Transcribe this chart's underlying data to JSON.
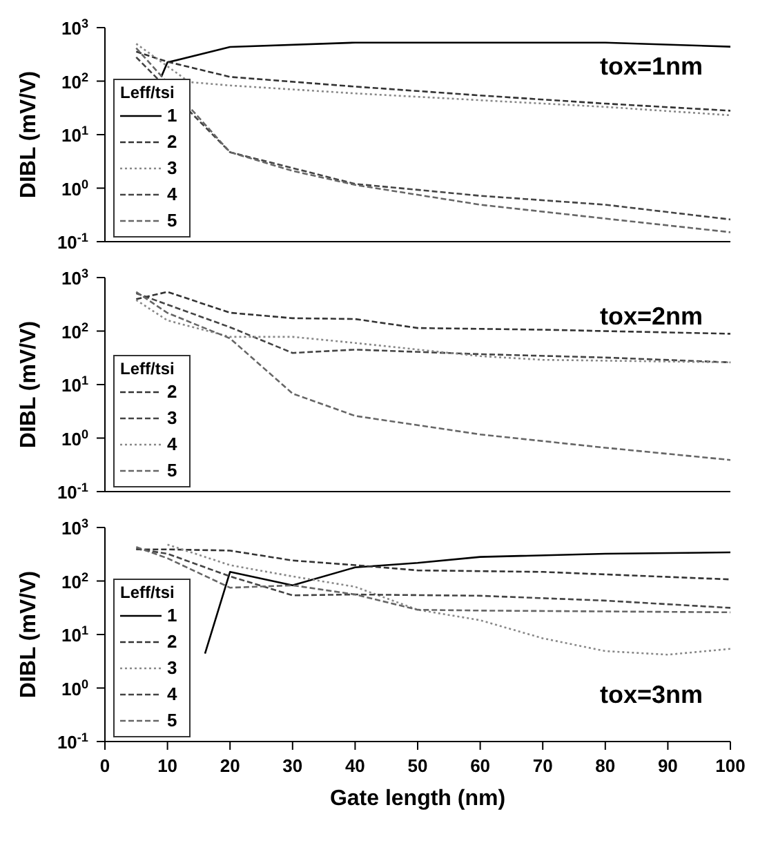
{
  "chart_data": [
    {
      "type": "line",
      "ylabel": "DIBL (mV/V)",
      "legend_title": "Leff/tsi",
      "legend": "bottom left",
      "log": "y",
      "grid": false,
      "marker": "none",
      "tick_labels": "y",
      "xlim": [
        0,
        100
      ],
      "xticks": [
        0,
        10,
        20,
        30,
        40,
        50,
        60,
        70,
        80,
        90,
        100
      ],
      "ylim": [
        0.1,
        1000
      ],
      "yticks": [
        {
          "value": 0.1,
          "label": "10$^{-1}$"
        },
        {
          "value": 1,
          "label": "10$^{0}$"
        },
        {
          "value": 10,
          "label": "10$^{1}$"
        },
        {
          "value": 100,
          "label": "10$^{2}$"
        },
        {
          "value": 1000,
          "label": "10$^{3}$"
        }
      ],
      "annotations": [
        "tox=1nm"
      ],
      "series": [
        {
          "name": "1",
          "color": "#000000",
          "line_style": "solid",
          "x": [
            9,
            10,
            20,
            40,
            60,
            80,
            100
          ],
          "values": [
            120,
            224,
            435,
            525,
            525,
            525,
            440
          ]
        },
        {
          "name": "2",
          "color": "#333333",
          "line_style": "dashed",
          "x": [
            5,
            10,
            20,
            40,
            60,
            80,
            100
          ],
          "values": [
            355,
            230,
            120,
            79,
            54,
            38,
            28
          ]
        },
        {
          "name": "3",
          "color": "#888888",
          "line_style": "dotted",
          "x": [
            5,
            13.5,
            20,
            40,
            60,
            80,
            100
          ],
          "values": [
            500,
            96,
            83,
            59,
            44,
            33,
            23
          ]
        },
        {
          "name": "4",
          "color": "#444444",
          "line_style": "dashed",
          "x": [
            5,
            20,
            40,
            60,
            80,
            100
          ],
          "values": [
            280,
            4.7,
            1.2,
            0.72,
            0.49,
            0.26
          ]
        },
        {
          "name": "5",
          "color": "#666666",
          "line_style": "dashed",
          "x": [
            5,
            20,
            30,
            40,
            60,
            80,
            100
          ],
          "values": [
            415,
            4.7,
            2.1,
            1.15,
            0.49,
            0.27,
            0.15
          ]
        }
      ]
    },
    {
      "type": "line",
      "ylabel": "DIBL (mV/V)",
      "legend_title": "Leff/tsi",
      "legend": "bottom left",
      "log": "y",
      "grid": false,
      "marker": "none",
      "tick_labels": "y",
      "xlim": [
        0,
        100
      ],
      "xticks": [
        0,
        10,
        20,
        30,
        40,
        50,
        60,
        70,
        80,
        90,
        100
      ],
      "ylim": [
        0.1,
        1000
      ],
      "yticks": [
        {
          "value": 0.1,
          "label": "10$^{-1}$"
        },
        {
          "value": 1,
          "label": "10$^{0}$"
        },
        {
          "value": 10,
          "label": "10$^{1}$"
        },
        {
          "value": 100,
          "label": "10$^{2}$"
        },
        {
          "value": 1000,
          "label": "10$^{3}$"
        }
      ],
      "annotations": [
        "tox=2nm"
      ],
      "series": [
        {
          "name": "2",
          "color": "#333333",
          "line_style": "dashed",
          "x": [
            5,
            10,
            20,
            30,
            40,
            50,
            70,
            100
          ],
          "values": [
            395,
            540,
            220,
            174,
            168,
            114,
            106,
            89
          ]
        },
        {
          "name": "3",
          "color": "#444444",
          "line_style": "dashed",
          "x": [
            5,
            10,
            20,
            30,
            40,
            60,
            80,
            100
          ],
          "values": [
            510,
            312,
            118,
            39,
            45,
            37,
            32,
            26
          ]
        },
        {
          "name": "4",
          "color": "#888888",
          "line_style": "dotted",
          "x": [
            5,
            10,
            20,
            30,
            40,
            60,
            70,
            100
          ],
          "values": [
            380,
            158,
            78,
            78,
            60,
            34,
            29,
            26
          ]
        },
        {
          "name": "5",
          "color": "#666666",
          "line_style": "dashed",
          "x": [
            5,
            10,
            20,
            30,
            40,
            60,
            80,
            100
          ],
          "values": [
            540,
            218,
            73,
            6.8,
            2.6,
            1.17,
            0.66,
            0.39
          ]
        }
      ]
    },
    {
      "type": "line",
      "xlabel": "Gate length (nm)",
      "ylabel": "DIBL (mV/V)",
      "legend_title": "Leff/tsi",
      "legend": "bottom left",
      "log": "y",
      "grid": false,
      "marker": "none",
      "xlim": [
        0,
        100
      ],
      "xticks": [
        0,
        10,
        20,
        30,
        40,
        50,
        60,
        70,
        80,
        90,
        100
      ],
      "ylim": [
        0.1,
        1000
      ],
      "yticks": [
        {
          "value": 0.1,
          "label": "10$^{-1}$"
        },
        {
          "value": 1,
          "label": "10$^{0}$"
        },
        {
          "value": 10,
          "label": "10$^{1}$"
        },
        {
          "value": 100,
          "label": "10$^{2}$"
        },
        {
          "value": 1000,
          "label": "10$^{3}$"
        }
      ],
      "annotations": [
        "tox=3nm"
      ],
      "series": [
        {
          "name": "1",
          "color": "#000000",
          "line_style": "solid",
          "x": [
            16,
            20,
            30,
            40,
            50,
            60,
            80,
            100
          ],
          "values": [
            4.4,
            148,
            83,
            180,
            218,
            282,
            323,
            343
          ]
        },
        {
          "name": "2",
          "color": "#333333",
          "line_style": "dashed",
          "x": [
            5,
            10,
            20,
            30,
            40,
            50,
            70,
            100
          ],
          "values": [
            390,
            390,
            370,
            242,
            198,
            158,
            148,
            107
          ]
        },
        {
          "name": "3",
          "color": "#888888",
          "line_style": "dotted",
          "x": [
            10,
            20,
            30,
            40,
            50,
            60,
            70,
            80,
            90,
            100
          ],
          "values": [
            480,
            198,
            122,
            78,
            29,
            18.5,
            8.5,
            4.9,
            4.2,
            5.4
          ]
        },
        {
          "name": "4",
          "color": "#444444",
          "line_style": "dashed",
          "x": [
            5,
            10,
            20,
            30,
            40,
            60,
            80,
            100
          ],
          "values": [
            400,
            323,
            122,
            54,
            56,
            53,
            43,
            31.5
          ]
        },
        {
          "name": "5",
          "color": "#666666",
          "line_style": "dashed",
          "x": [
            5,
            10,
            20,
            30,
            40,
            50,
            60,
            80,
            100
          ],
          "values": [
            433,
            266,
            75,
            83,
            56,
            29,
            28,
            27,
            26
          ]
        }
      ]
    }
  ]
}
